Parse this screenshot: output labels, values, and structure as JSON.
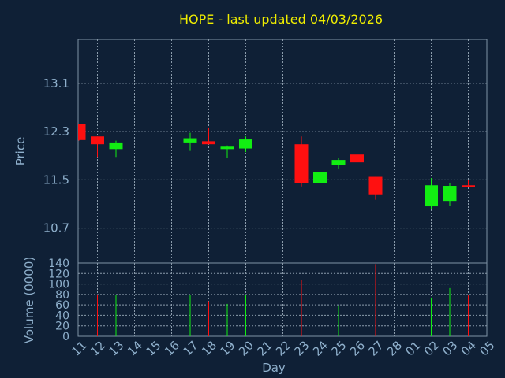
{
  "chart_data": {
    "type": "candlestick",
    "title": "HOPE - last updated 04/03/2026",
    "xlabel": "Day",
    "price_panel": {
      "ylabel": "Price",
      "yticks": [
        10.7,
        11.5,
        12.3,
        13.1
      ],
      "ylim": [
        10.12,
        13.83
      ]
    },
    "volume_panel": {
      "ylabel": "Volume (0000)",
      "yticks": [
        0,
        20,
        40,
        60,
        80,
        100,
        120,
        140
      ],
      "ylim": [
        0,
        140
      ]
    },
    "days": [
      "11",
      "12",
      "13",
      "14",
      "15",
      "16",
      "17",
      "18",
      "19",
      "20",
      "21",
      "22",
      "23",
      "24",
      "25",
      "26",
      "27",
      "28",
      "01",
      "02",
      "03",
      "04",
      "05"
    ],
    "candles": [
      {
        "day": "11",
        "open": 12.42,
        "high": 12.42,
        "low": 12.15,
        "close": 12.16,
        "volume": null
      },
      {
        "day": "12",
        "open": 12.22,
        "high": 12.22,
        "low": 11.88,
        "close": 12.09,
        "volume": 80
      },
      {
        "day": "13",
        "open": 12.01,
        "high": 12.15,
        "low": 11.88,
        "close": 12.12,
        "volume": 79
      },
      {
        "day": "17",
        "open": 12.12,
        "high": 12.28,
        "low": 11.98,
        "close": 12.19,
        "volume": 79
      },
      {
        "day": "18",
        "open": 12.14,
        "high": 12.36,
        "low": 12.09,
        "close": 12.09,
        "volume": 67
      },
      {
        "day": "19",
        "open": 12.01,
        "high": 12.07,
        "low": 11.87,
        "close": 12.05,
        "volume": 62
      },
      {
        "day": "20",
        "open": 12.02,
        "high": 12.22,
        "low": 11.96,
        "close": 12.17,
        "volume": 79
      },
      {
        "day": "23",
        "open": 12.09,
        "high": 12.22,
        "low": 11.39,
        "close": 11.45,
        "volume": 107
      },
      {
        "day": "24",
        "open": 11.44,
        "high": 11.65,
        "low": 11.42,
        "close": 11.63,
        "volume": 92
      },
      {
        "day": "25",
        "open": 11.75,
        "high": 11.86,
        "low": 11.69,
        "close": 11.83,
        "volume": 59
      },
      {
        "day": "26",
        "open": 11.92,
        "high": 12.07,
        "low": 11.79,
        "close": 11.79,
        "volume": 86
      },
      {
        "day": "27",
        "open": 11.55,
        "high": 11.55,
        "low": 11.17,
        "close": 11.26,
        "volume": 138
      },
      {
        "day": "02",
        "open": 11.06,
        "high": 11.53,
        "low": 11.01,
        "close": 11.41,
        "volume": 74
      },
      {
        "day": "03",
        "open": 11.15,
        "high": 11.45,
        "low": 11.06,
        "close": 11.4,
        "volume": 92
      },
      {
        "day": "04",
        "open": 11.41,
        "high": 11.5,
        "low": 11.39,
        "close": 11.39,
        "volume": 78
      }
    ],
    "colors": {
      "background": "#0f2036",
      "up": "#12ee12",
      "down": "#ff1010",
      "title": "#f0ee00",
      "axis_text": "#8fb0cc",
      "grid": "#8a9bab"
    },
    "grid": true
  }
}
